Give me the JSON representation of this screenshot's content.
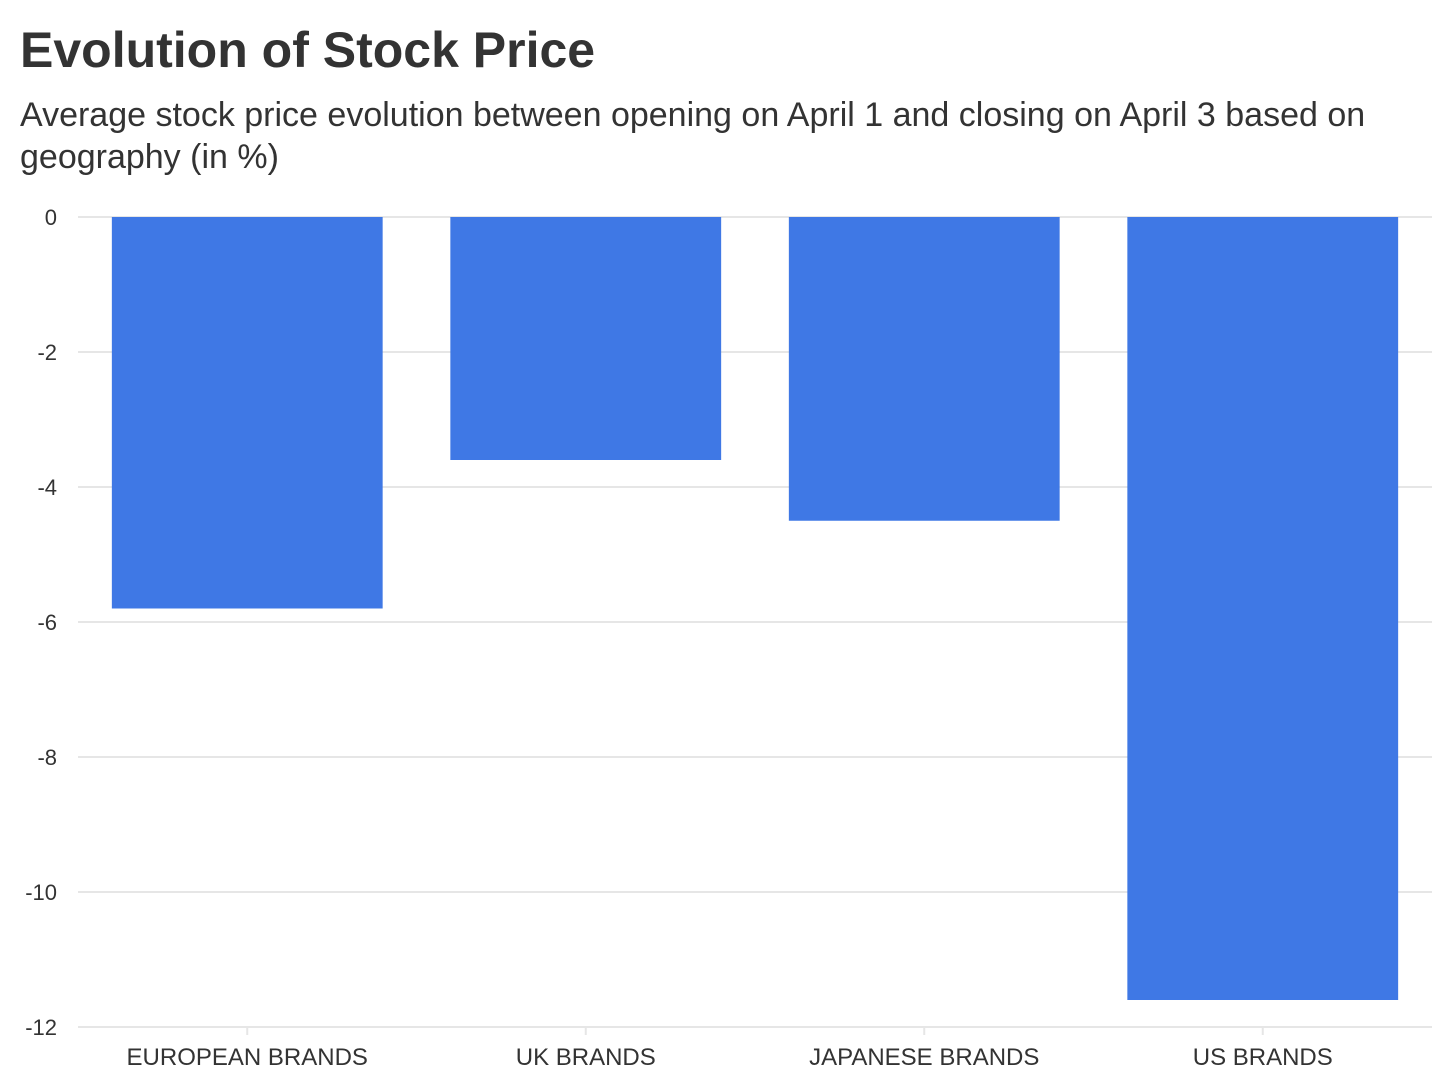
{
  "chart_data": {
    "type": "bar",
    "title": "Evolution of Stock Price",
    "subtitle": "Average stock price evolution between opening on April 1 and closing on April 3 based on geography (in %)",
    "xlabel": "",
    "ylabel": "",
    "categories": [
      "EUROPEAN BRANDS",
      "UK BRANDS",
      "JAPANESE BRANDS",
      "US BRANDS"
    ],
    "values": [
      -5.8,
      -3.6,
      -4.5,
      -11.6
    ],
    "ylim": [
      -12,
      0
    ],
    "yticks": [
      0,
      -2,
      -4,
      -6,
      -8,
      -10,
      -12
    ],
    "ytick_labels": [
      "0",
      "-2",
      "-4",
      "-6",
      "-8",
      "-10",
      "-12"
    ],
    "grid": true,
    "legend": "none",
    "bar_color": "#3b75e4"
  }
}
